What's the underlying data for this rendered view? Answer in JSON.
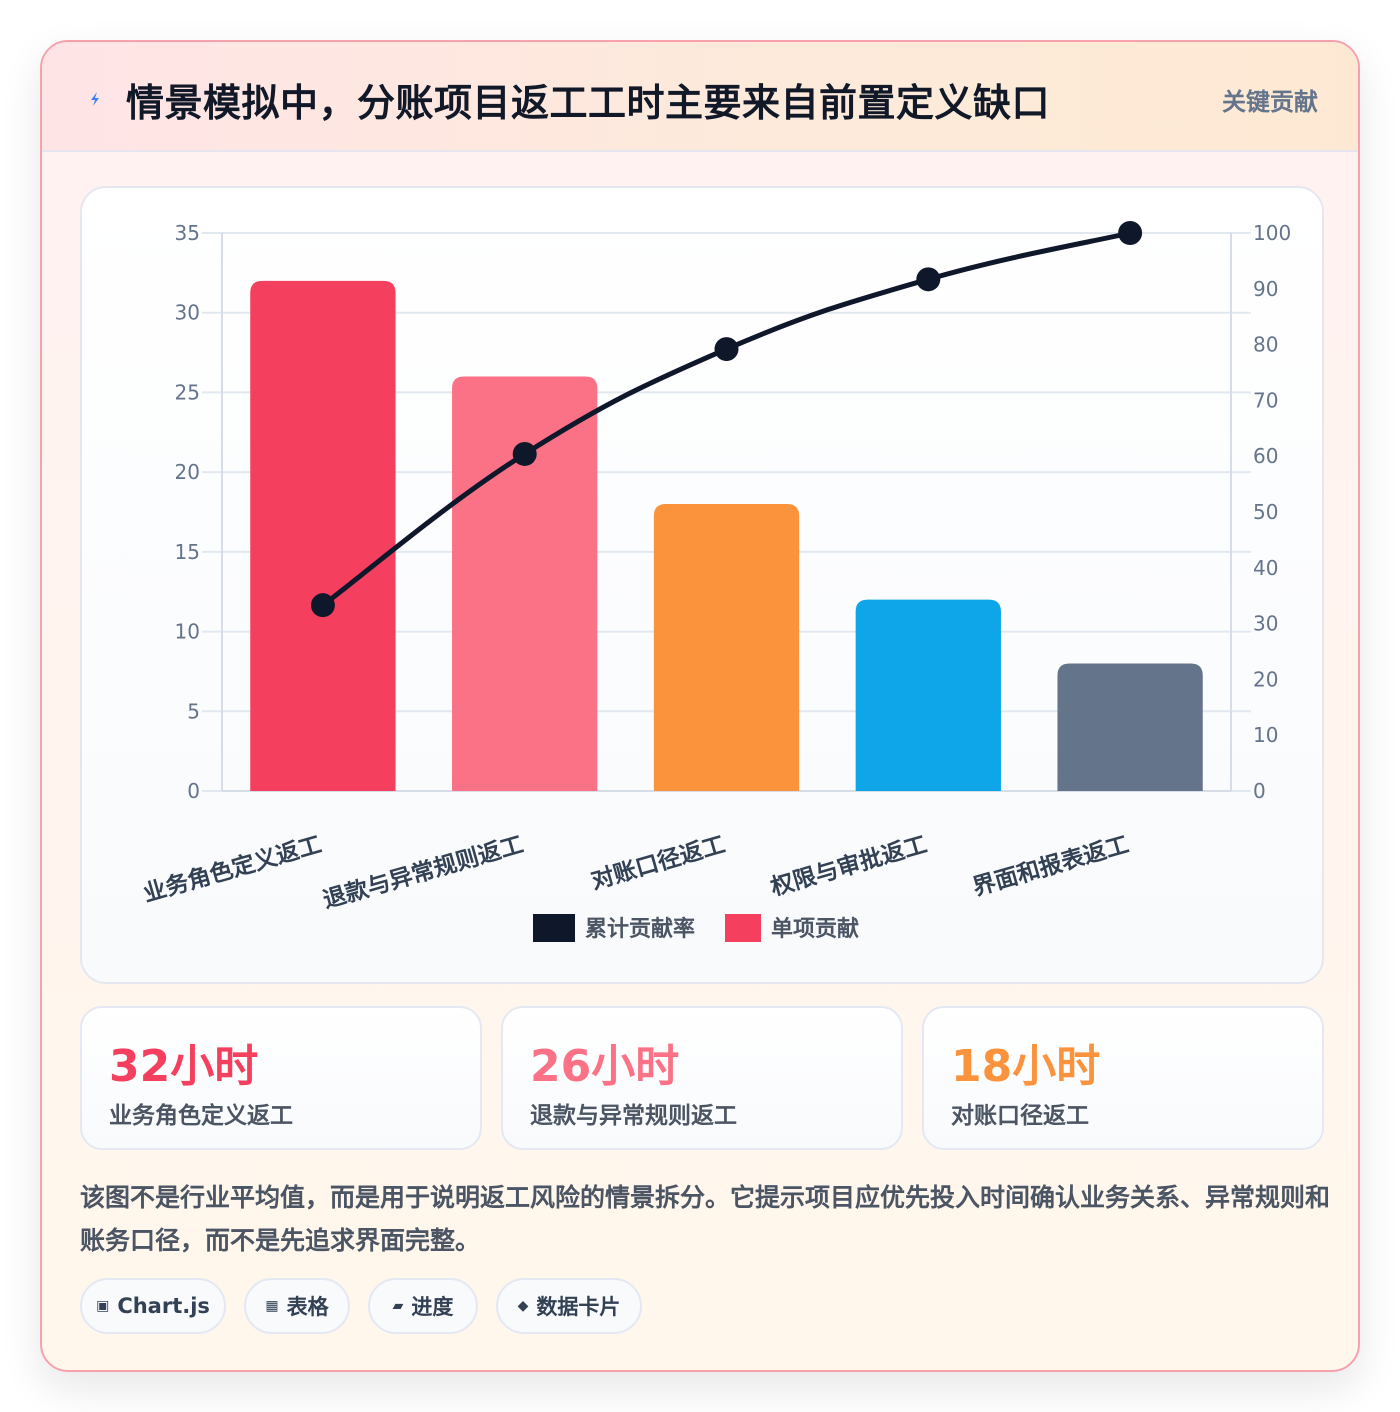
{
  "header": {
    "title": "情景模拟中，分账项目返工工时主要来自前置定义缺口",
    "badge": "关键贡献",
    "icon": "lightning-icon"
  },
  "chart_data": {
    "type": "bar",
    "categories": [
      "业务角色定义返工",
      "退款与异常规则返工",
      "对账口径返工",
      "权限与审批返工",
      "界面和报表返工"
    ],
    "series": [
      {
        "name": "累计贡献率",
        "type": "line",
        "axis": "right",
        "color": "#0f172a",
        "values": [
          33.3,
          60.4,
          79.2,
          91.7,
          100
        ]
      },
      {
        "name": "单项贡献",
        "type": "bar",
        "axis": "left",
        "colors": [
          "#f43f5e",
          "#fb7185",
          "#fb923c",
          "#0ea5e9",
          "#64748b"
        ],
        "values": [
          32,
          26,
          18,
          12,
          8
        ]
      }
    ],
    "y_left": {
      "min": 0,
      "max": 35,
      "ticks": [
        0,
        5,
        10,
        15,
        20,
        25,
        30,
        35
      ]
    },
    "y_right": {
      "min": 0,
      "max": 100,
      "ticks": [
        0,
        10,
        20,
        30,
        40,
        50,
        60,
        70,
        80,
        90,
        100
      ]
    },
    "grid": true,
    "legend": "bottom"
  },
  "stats": [
    {
      "value": "32小时",
      "label": "业务角色定义返工",
      "color": "#f43f5e"
    },
    {
      "value": "26小时",
      "label": "退款与异常规则返工",
      "color": "#fb7185"
    },
    {
      "value": "18小时",
      "label": "对账口径返工",
      "color": "#fb923c"
    }
  ],
  "description": "该图不是行业平均值，而是用于说明返工风险的情景拆分。它提示项目应优先投入时间确认业务关系、异常规则和账务口径，而不是先追求界面完整。",
  "tags": [
    {
      "icon": "▣",
      "label": "Chart.js"
    },
    {
      "icon": "▦",
      "label": "表格"
    },
    {
      "icon": "▰",
      "label": "进度"
    },
    {
      "icon": "◆",
      "label": "数据卡片"
    }
  ]
}
